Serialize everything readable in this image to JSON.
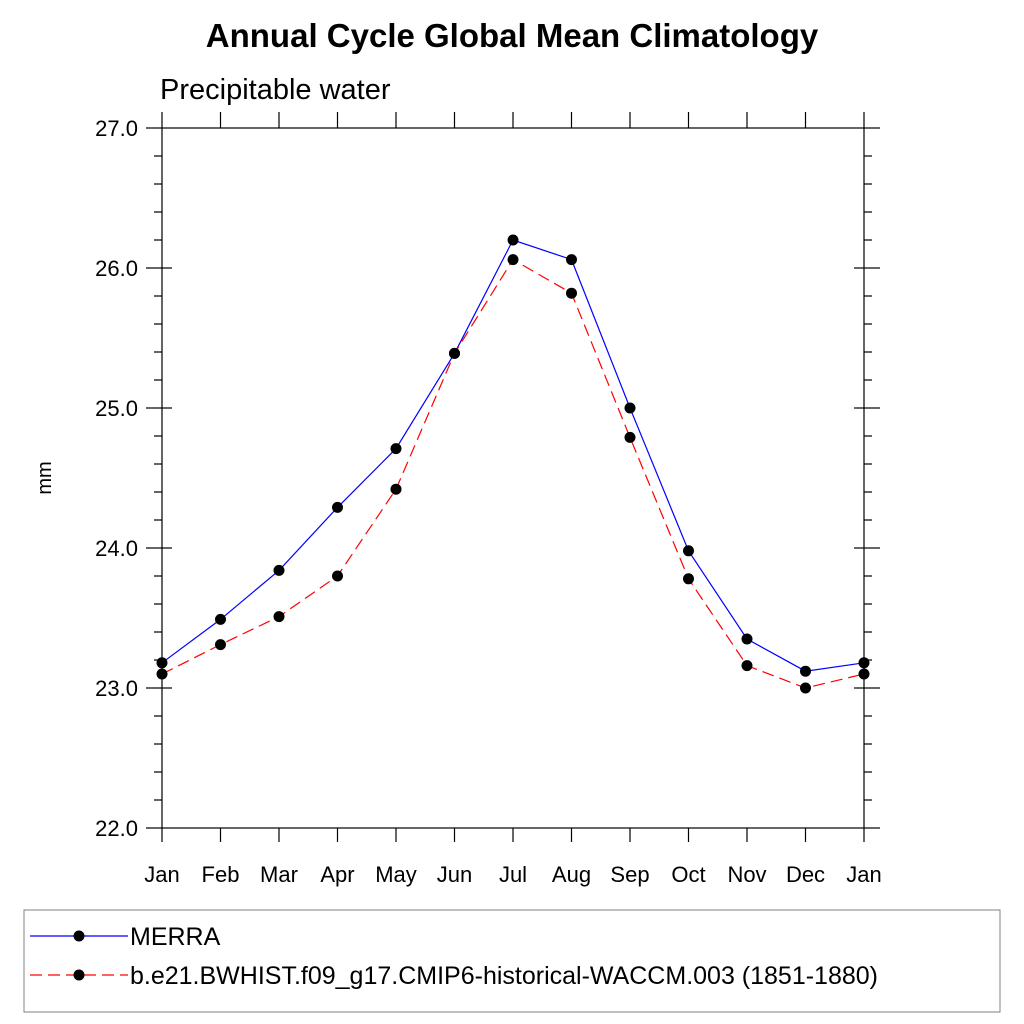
{
  "chart_data": {
    "type": "line",
    "title": "Annual Cycle Global Mean Climatology",
    "subtitle": "Precipitable water",
    "xlabel": "",
    "ylabel": "mm",
    "categories": [
      "Jan",
      "Feb",
      "Mar",
      "Apr",
      "May",
      "Jun",
      "Jul",
      "Aug",
      "Sep",
      "Oct",
      "Nov",
      "Dec",
      "Jan"
    ],
    "ylim": [
      22.0,
      27.0
    ],
    "yticks": [
      "22.0",
      "23.0",
      "24.0",
      "25.0",
      "26.0",
      "27.0"
    ],
    "yminor_step": 0.2,
    "grid": false,
    "legend_position": "bottom",
    "series": [
      {
        "name": "MERRA",
        "color": "#0000ff",
        "dash": "solid",
        "marker": "circle",
        "values": [
          23.18,
          23.49,
          23.84,
          24.29,
          24.71,
          25.39,
          26.2,
          26.06,
          25.0,
          23.98,
          23.35,
          23.12,
          23.18
        ]
      },
      {
        "name": "b.e21.BWHIST.f09_g17.CMIP6-historical-WACCM.003 (1851-1880)",
        "color": "#ff0000",
        "dash": "dashed",
        "marker": "circle",
        "values": [
          23.1,
          23.31,
          23.51,
          23.8,
          24.42,
          25.39,
          26.06,
          25.82,
          24.79,
          23.78,
          23.16,
          23.0,
          23.1
        ]
      }
    ]
  }
}
